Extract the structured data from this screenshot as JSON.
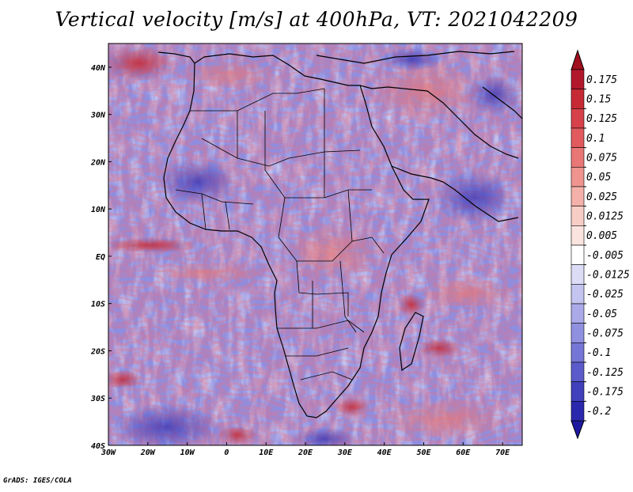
{
  "title": "Vertical velocity [m/s] at 400hPa, VT: 2021042209",
  "footer": "GrADS: IGES/COLA",
  "map": {
    "lon_range": [
      -30,
      75
    ],
    "lat_range": [
      -40,
      45
    ],
    "lon_ticks": [
      {
        "value": -30,
        "label": "30W"
      },
      {
        "value": -20,
        "label": "20W"
      },
      {
        "value": -10,
        "label": "10W"
      },
      {
        "value": 0,
        "label": "0"
      },
      {
        "value": 10,
        "label": "10E"
      },
      {
        "value": 20,
        "label": "20E"
      },
      {
        "value": 30,
        "label": "30E"
      },
      {
        "value": 40,
        "label": "40E"
      },
      {
        "value": 50,
        "label": "50E"
      },
      {
        "value": 60,
        "label": "60E"
      },
      {
        "value": 70,
        "label": "70E"
      }
    ],
    "lat_ticks": [
      {
        "value": 40,
        "label": "40N"
      },
      {
        "value": 30,
        "label": "30N"
      },
      {
        "value": 20,
        "label": "20N"
      },
      {
        "value": 10,
        "label": "10N"
      },
      {
        "value": 0,
        "label": "EQ"
      },
      {
        "value": -10,
        "label": "10S"
      },
      {
        "value": -20,
        "label": "20S"
      },
      {
        "value": -30,
        "label": "30S"
      },
      {
        "value": -40,
        "label": "40S"
      }
    ]
  },
  "colorbar": {
    "levels": [
      {
        "label": "0.175",
        "color": "#b2182b"
      },
      {
        "label": "0.15",
        "color": "#c62a35"
      },
      {
        "label": "0.125",
        "color": "#d6414a"
      },
      {
        "label": "0.1",
        "color": "#e05a5e"
      },
      {
        "label": "0.075",
        "color": "#e87775"
      },
      {
        "label": "0.05",
        "color": "#ef948f"
      },
      {
        "label": "0.025",
        "color": "#f4b1aa"
      },
      {
        "label": "0.0125",
        "color": "#f8cdc6"
      },
      {
        "label": "0.005",
        "color": "#fbe4df"
      },
      {
        "label": "-0.005",
        "color": "#ffffff"
      },
      {
        "label": "-0.0125",
        "color": "#dcdcf7"
      },
      {
        "label": "-0.025",
        "color": "#c4c4f0"
      },
      {
        "label": "-0.05",
        "color": "#abaae9"
      },
      {
        "label": "-0.075",
        "color": "#9090e0"
      },
      {
        "label": "-0.1",
        "color": "#7676d6"
      },
      {
        "label": "-0.125",
        "color": "#5b5bcb"
      },
      {
        "label": "-0.175",
        "color": "#4040bd"
      },
      {
        "label": "-0.2",
        "color": "#2a28ad"
      }
    ],
    "top_color": "#a01020",
    "bottom_color": "#1e1aa0"
  }
}
